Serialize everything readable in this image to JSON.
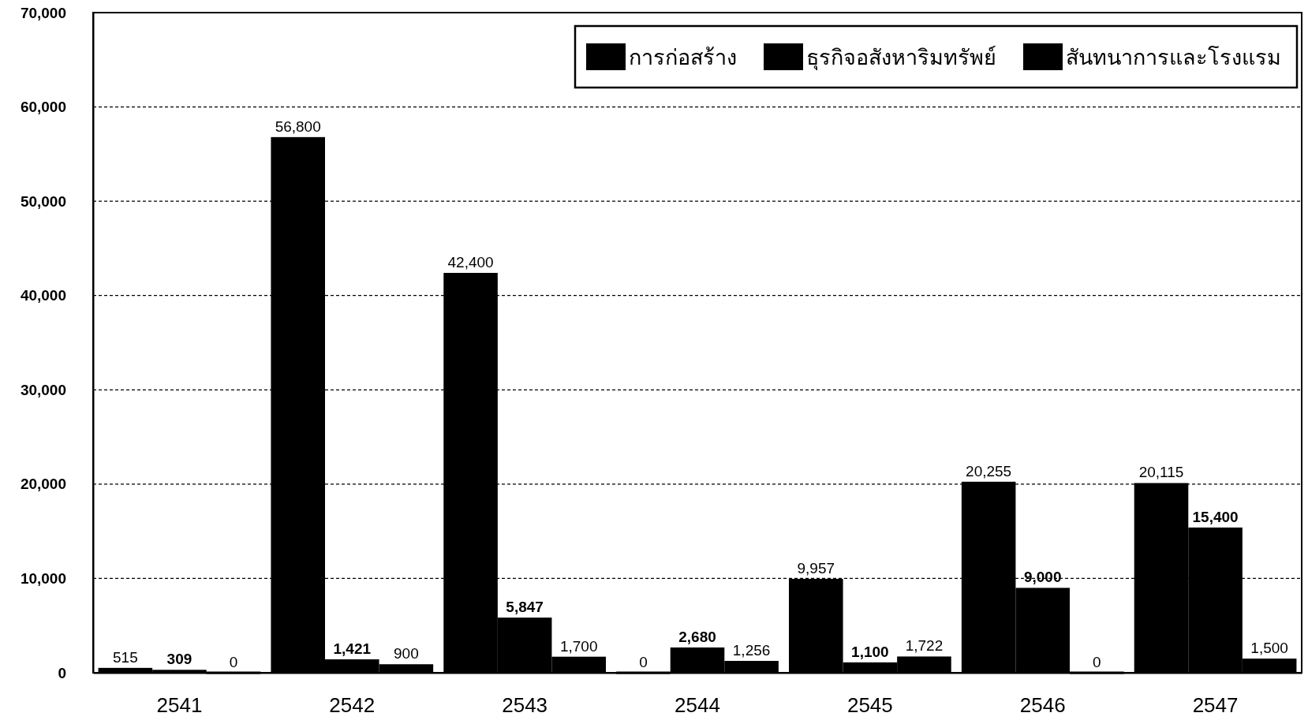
{
  "chart_data": {
    "type": "bar",
    "categories": [
      "2541",
      "2542",
      "2543",
      "2544",
      "2545",
      "2546",
      "2547"
    ],
    "series": [
      {
        "name": "การก่อสร้าง",
        "color": "#000000",
        "values": [
          515,
          56800,
          42400,
          0,
          9957,
          20255,
          20115
        ],
        "value_labels": [
          "515",
          "56,800",
          "42,400",
          "0",
          "9,957",
          "20,255",
          "20,115"
        ]
      },
      {
        "name": "ธุรกิจอสังหาริมทรัพย์",
        "color": "#000000",
        "values": [
          309,
          1421,
          5847,
          2680,
          1100,
          9000,
          15400
        ],
        "value_labels": [
          "309",
          "1,421",
          "5,847",
          "2,680",
          "1,100",
          "9,000",
          "15,400"
        ]
      },
      {
        "name": "สันทนาการและโรงแรม",
        "color": "#000000",
        "values": [
          0,
          900,
          1700,
          1256,
          1722,
          0,
          1500
        ],
        "value_labels": [
          "0",
          "900",
          "1,700",
          "1,256",
          "1,722",
          "0",
          "1,500"
        ]
      }
    ],
    "ylim": [
      0,
      70000
    ],
    "yticks": [
      0,
      {
        "value": 10000,
        "label": "10,000"
      },
      {
        "value": 20000,
        "label": "20,000"
      },
      {
        "value": 30000,
        "label": "30,000"
      },
      {
        "value": 40000,
        "label": "40,000"
      },
      {
        "value": 50000,
        "label": "50,000"
      },
      {
        "value": 60000,
        "label": "60,000"
      },
      {
        "value": 70000,
        "label": "70,000"
      }
    ],
    "grid": "y",
    "legend": "top right"
  }
}
